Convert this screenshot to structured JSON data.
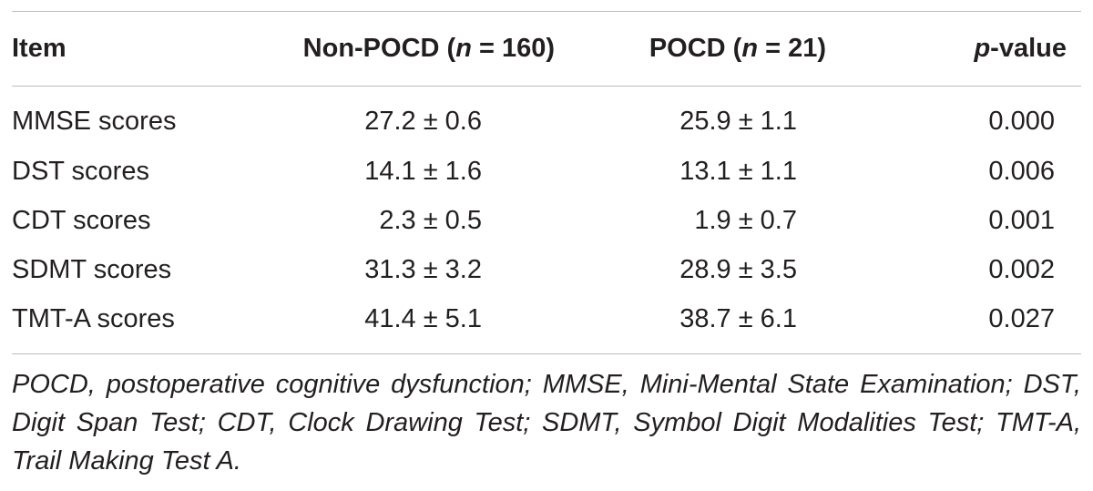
{
  "table": {
    "header": {
      "item": "Item",
      "non_pocd_prefix": "Non-POCD (",
      "non_pocd_n": "n",
      "non_pocd_suffix": " = 160)",
      "pocd_prefix": "POCD (",
      "pocd_n": "n",
      "pocd_suffix": " = 21)",
      "p_italic": "p",
      "p_suffix": "-value"
    },
    "rows": [
      {
        "item": "MMSE scores",
        "non_pocd": "27.2 ± 0.6",
        "pocd": "25.9 ± 1.1",
        "p": "0.000"
      },
      {
        "item": "DST scores",
        "non_pocd": "14.1 ± 1.6",
        "pocd": "13.1 ± 1.1",
        "p": "0.006"
      },
      {
        "item": "CDT scores",
        "non_pocd": "2.3 ± 0.5",
        "pocd": "1.9 ± 0.7",
        "p": "0.001"
      },
      {
        "item": "SDMT scores",
        "non_pocd": "31.3 ± 3.2",
        "pocd": "28.9 ± 3.5",
        "p": "0.002"
      },
      {
        "item": "TMT-A scores",
        "non_pocd": "41.4 ± 5.1",
        "pocd": "38.7 ± 6.1",
        "p": "0.027"
      }
    ],
    "footnote": "POCD, postoperative cognitive dysfunction; MMSE, Mini-Mental State Examination; DST, Digit Span Test; CDT, Clock Drawing Test; SDMT, Symbol Digit Modalities Test; TMT-A, Trail Making Test A."
  }
}
